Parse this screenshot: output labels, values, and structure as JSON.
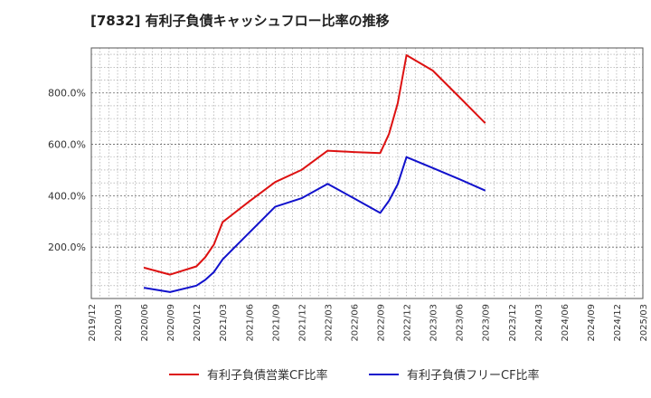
{
  "chart_data": {
    "type": "line",
    "title": "[7832]  有利子負債キャッシュフロー比率の推移",
    "xlabel": "",
    "ylabel": "",
    "x_ticks": [
      "2019/12",
      "2020/03",
      "2020/06",
      "2020/09",
      "2020/12",
      "2021/03",
      "2021/06",
      "2021/09",
      "2021/12",
      "2022/03",
      "2022/06",
      "2022/09",
      "2022/12",
      "2023/03",
      "2023/06",
      "2023/09",
      "2023/12",
      "2024/03",
      "2024/06",
      "2024/09",
      "2024/12",
      "2025/03"
    ],
    "y_ticks": [
      {
        "value": 200,
        "label": "200.0%"
      },
      {
        "value": 400,
        "label": "400.0%"
      },
      {
        "value": 600,
        "label": "600.0%"
      },
      {
        "value": 800,
        "label": "800.0%"
      }
    ],
    "ylim": [
      0,
      975
    ],
    "grid": true,
    "legend_position": "bottom",
    "series": [
      {
        "name": "有利子負債営業CF比率",
        "color": "#dd1111",
        "points": [
          [
            "2020/06",
            120
          ],
          [
            "2020/09",
            93
          ],
          [
            "2020/12",
            125
          ],
          [
            "2021/01",
            160
          ],
          [
            "2021/02",
            210
          ],
          [
            "2021/03",
            297
          ],
          [
            "2021/06",
            377
          ],
          [
            "2021/09",
            453
          ],
          [
            "2021/12",
            500
          ],
          [
            "2022/03",
            575
          ],
          [
            "2022/06",
            570
          ],
          [
            "2022/09",
            566
          ],
          [
            "2022/10",
            640
          ],
          [
            "2022/11",
            760
          ],
          [
            "2022/12",
            947
          ],
          [
            "2023/03",
            887
          ],
          [
            "2023/06",
            785
          ],
          [
            "2023/09",
            682
          ]
        ]
      },
      {
        "name": "有利子負債フリーCF比率",
        "color": "#1111cc",
        "points": [
          [
            "2020/06",
            42
          ],
          [
            "2020/09",
            25
          ],
          [
            "2020/12",
            50
          ],
          [
            "2021/01",
            72
          ],
          [
            "2021/02",
            103
          ],
          [
            "2021/03",
            152
          ],
          [
            "2021/06",
            255
          ],
          [
            "2021/09",
            357
          ],
          [
            "2021/12",
            390
          ],
          [
            "2022/03",
            446
          ],
          [
            "2022/06",
            390
          ],
          [
            "2022/09",
            333
          ],
          [
            "2022/10",
            380
          ],
          [
            "2022/11",
            445
          ],
          [
            "2022/12",
            550
          ],
          [
            "2023/03",
            508
          ],
          [
            "2023/06",
            465
          ],
          [
            "2023/09",
            420
          ]
        ]
      }
    ]
  }
}
